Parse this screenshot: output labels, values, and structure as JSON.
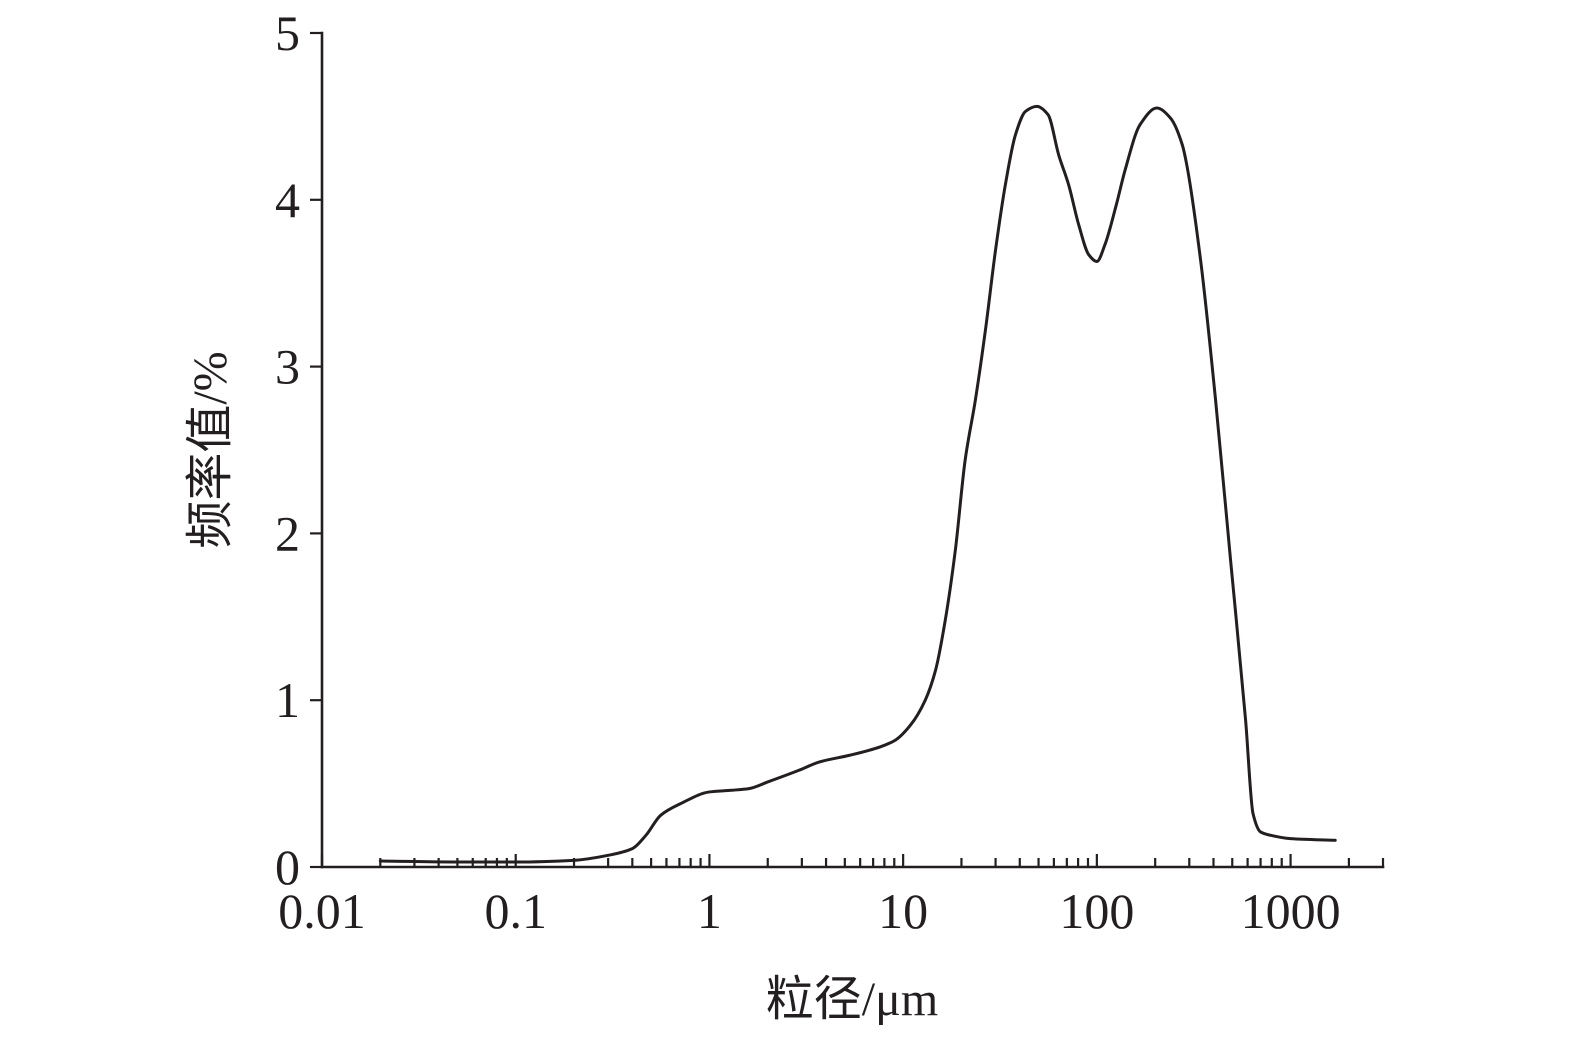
{
  "chart_data": {
    "type": "line",
    "xlabel": "粒径/μm",
    "ylabel": "频率值/%",
    "xscale": "log",
    "xlim": [
      0.01,
      3000
    ],
    "ylim": [
      0,
      5
    ],
    "xticks": [
      0.01,
      0.1,
      1,
      10,
      100,
      1000
    ],
    "xtick_labels": [
      "0.01",
      "0.1",
      "1",
      "10",
      "100",
      "1000"
    ],
    "yticks": [
      0,
      1,
      2,
      3,
      4,
      5
    ],
    "ytick_labels": [
      "0",
      "1",
      "2",
      "3",
      "4",
      "5"
    ],
    "grid": false,
    "legend": "none",
    "line_color": "#231f20",
    "series": [
      {
        "x": [
          0.02,
          0.05,
          0.1,
          0.2,
          0.3,
          0.4,
          0.47,
          0.56,
          0.71,
          1.0,
          1.3,
          1.6,
          2.0,
          2.9,
          3.7,
          5.3,
          7.6,
          9.1,
          10.9,
          13.0,
          14.7,
          16.5,
          18.6,
          20.9,
          23.6,
          26.6,
          30,
          33.7,
          38,
          42.8,
          49,
          56,
          63.5,
          71.5,
          80.6,
          90.9,
          100,
          110,
          126,
          140,
          167,
          204,
          240,
          276,
          290,
          343,
          410,
          490,
          586,
          640,
          700,
          790,
          1000,
          1700
        ],
        "y": [
          0.036,
          0.03,
          0.03,
          0.04,
          0.07,
          0.11,
          0.19,
          0.31,
          0.38,
          0.45,
          0.46,
          0.47,
          0.51,
          0.58,
          0.63,
          0.67,
          0.72,
          0.76,
          0.85,
          1.0,
          1.18,
          1.48,
          1.9,
          2.44,
          2.8,
          3.22,
          3.7,
          4.09,
          4.39,
          4.53,
          4.56,
          4.51,
          4.27,
          4.09,
          3.85,
          3.67,
          3.63,
          3.73,
          3.97,
          4.18,
          4.45,
          4.55,
          4.49,
          4.33,
          4.22,
          3.64,
          2.8,
          1.84,
          0.88,
          0.32,
          0.21,
          0.19,
          0.17,
          0.16
        ]
      }
    ]
  }
}
